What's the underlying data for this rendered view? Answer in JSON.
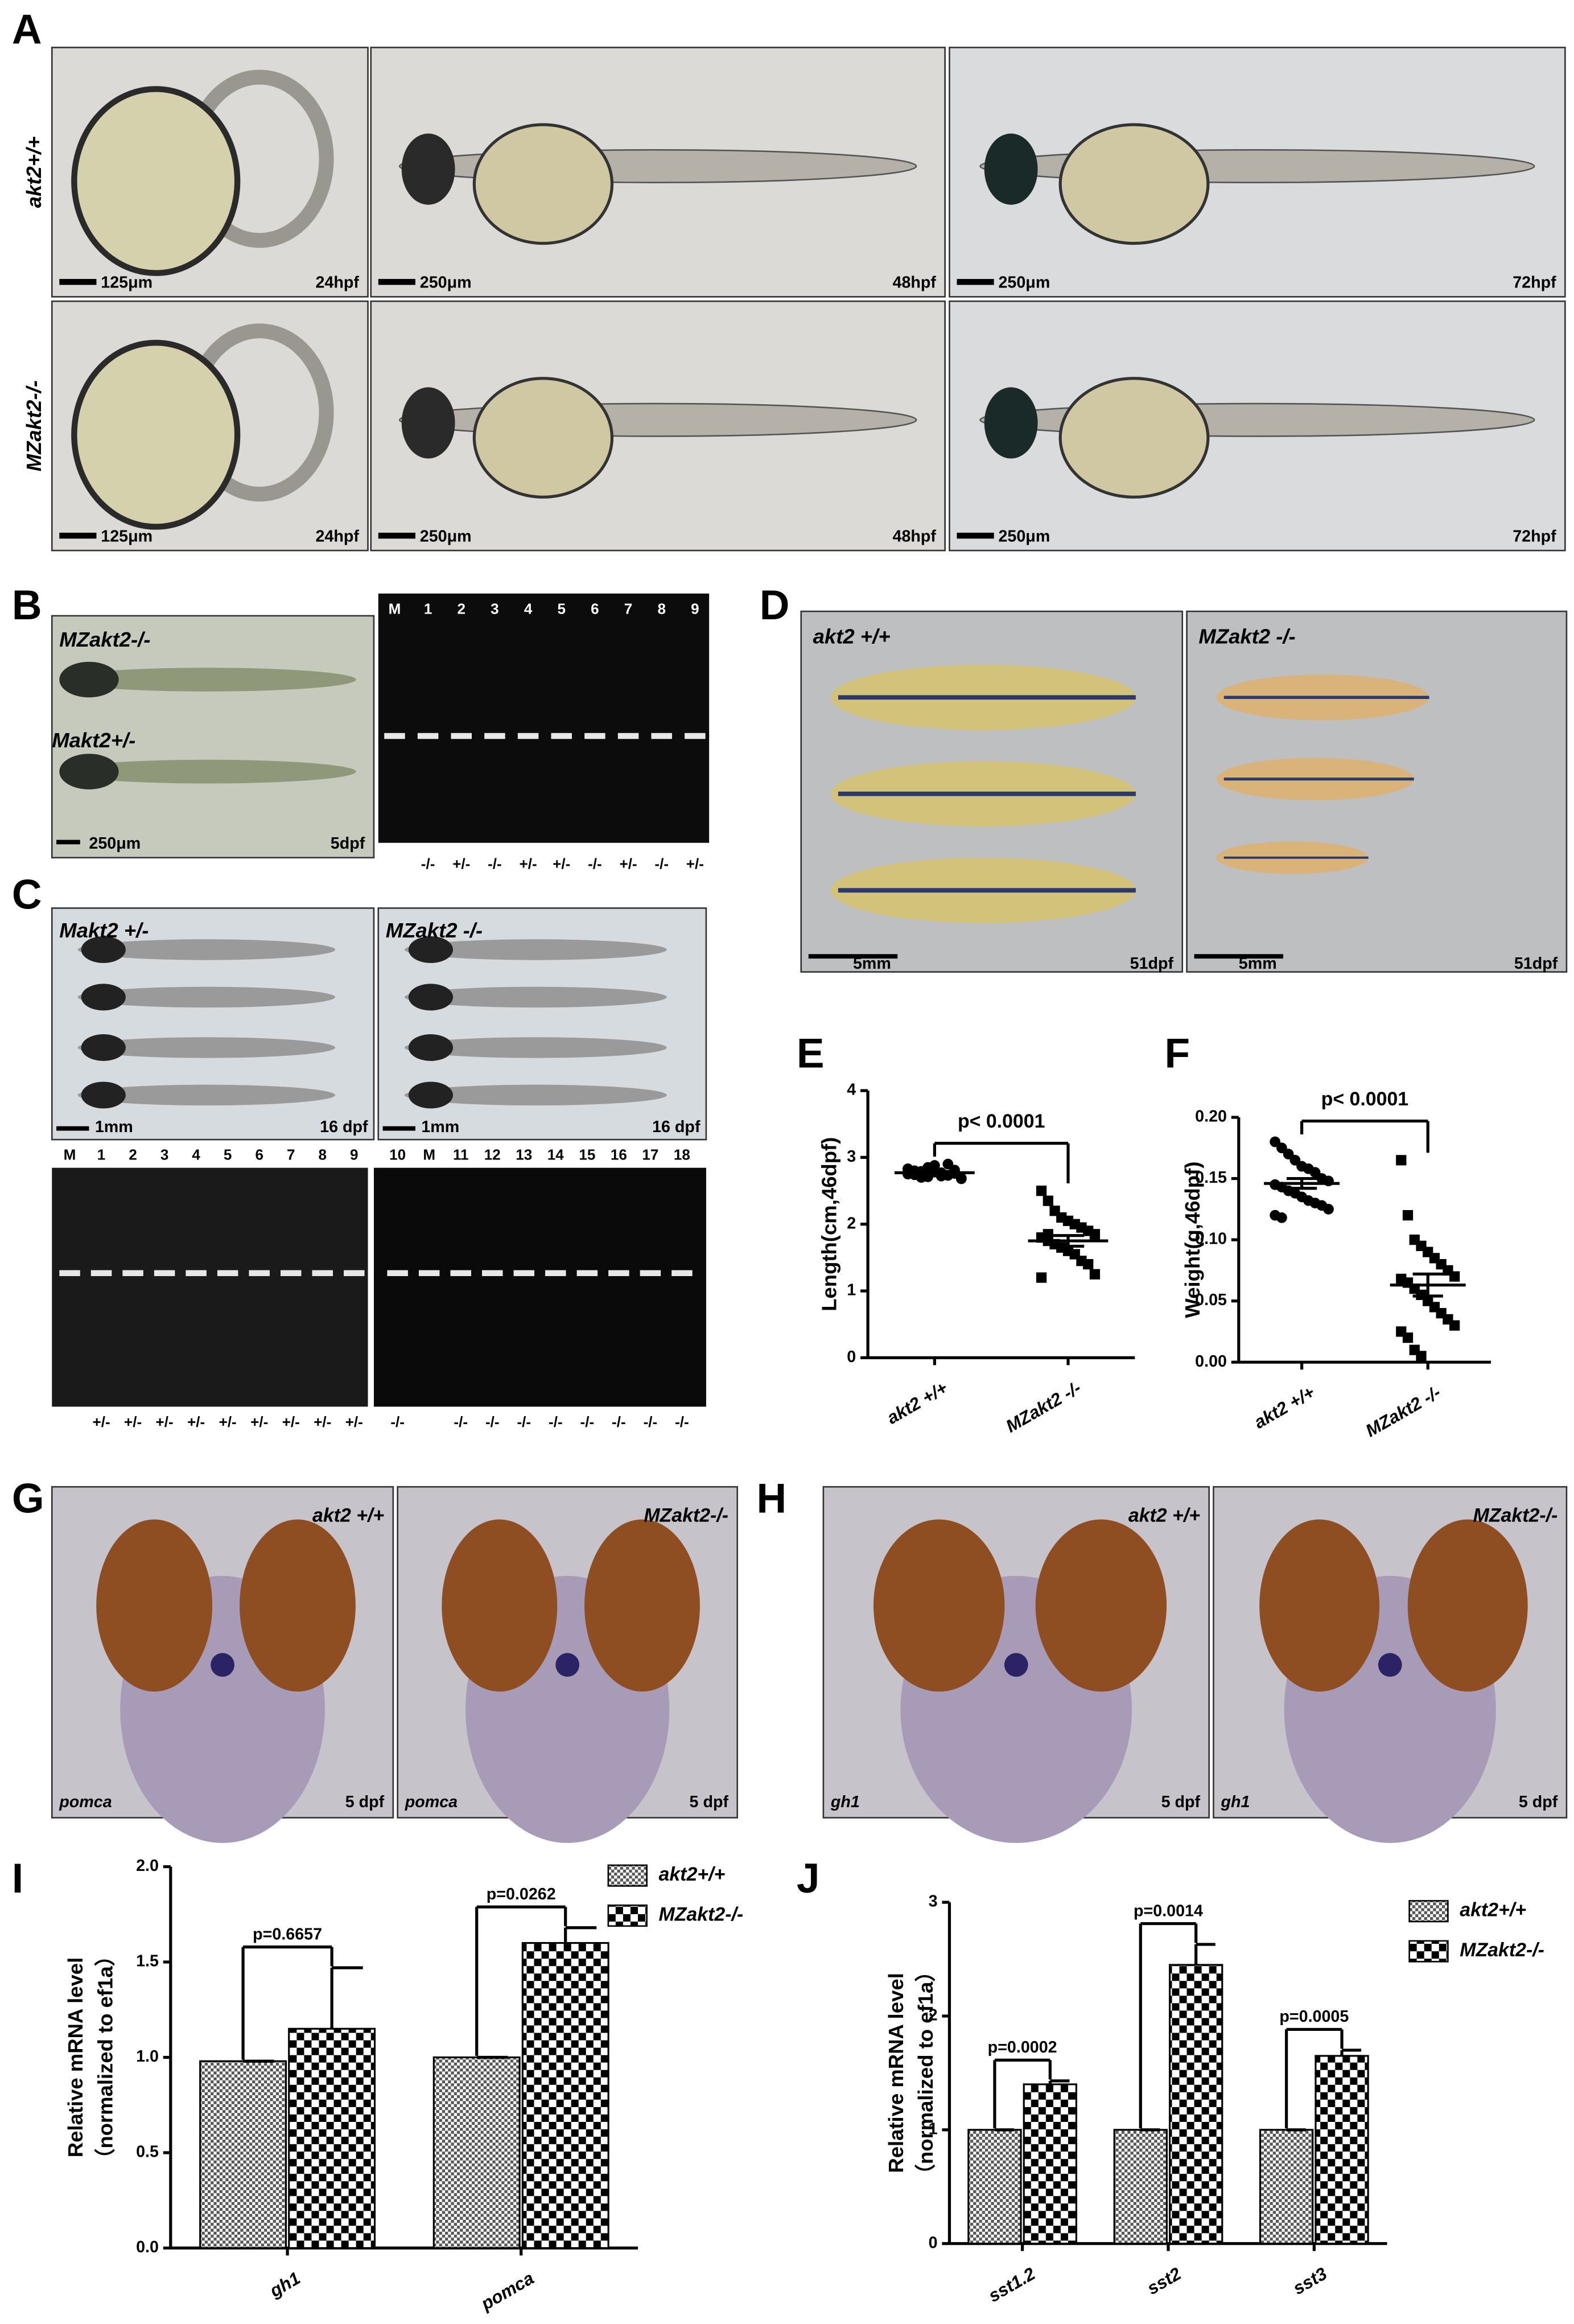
{
  "figure": {
    "panel_letters": [
      "A",
      "B",
      "C",
      "D",
      "E",
      "F",
      "G",
      "H",
      "I",
      "J"
    ],
    "A": {
      "rows": [
        "akt2+/+",
        "MZakt2-/-"
      ],
      "scale_bars": [
        "125μm",
        "250μm",
        "250μm",
        "125μm",
        "250μm",
        "250μm"
      ],
      "stages": [
        "24hpf",
        "48hpf",
        "72hpf",
        "24hpf",
        "48hpf",
        "72hpf"
      ]
    },
    "B": {
      "fish": [
        "MZakt2-/-",
        "Makt2+/-"
      ],
      "scale_bar": "250μm",
      "stage": "5dpf",
      "lanes": [
        "M",
        "1",
        "2",
        "3",
        "4",
        "5",
        "6",
        "7",
        "8",
        "9"
      ],
      "genotypes": [
        "-/-",
        "+/-",
        "-/-",
        "+/-",
        "+/-",
        "-/-",
        "+/-",
        "-/-",
        "+/-"
      ]
    },
    "C": {
      "fish": [
        "Makt2 +/-",
        "MZakt2 -/-"
      ],
      "scale_bars": [
        "1mm",
        "1mm"
      ],
      "stages": [
        "16 dpf",
        "16 dpf"
      ],
      "lanes_left": [
        "M",
        "1",
        "2",
        "3",
        "4",
        "5",
        "6",
        "7",
        "8",
        "9"
      ],
      "genotypes_left": [
        "+/-",
        "+/-",
        "+/-",
        "+/-",
        "+/-",
        "+/-",
        "+/-",
        "+/-",
        "+/-"
      ],
      "lanes_right": [
        "10",
        "M",
        "11",
        "12",
        "13",
        "14",
        "15",
        "16",
        "17",
        "18"
      ],
      "genotypes_right": [
        "-/-",
        "-/-",
        "-/-",
        "-/-",
        "-/-",
        "-/-",
        "-/-",
        "-/-",
        "-/-"
      ]
    },
    "D": {
      "fish": [
        "akt2 +/+",
        "MZakt2 -/-"
      ],
      "scale_bars": [
        "5mm",
        "5mm"
      ],
      "stages": [
        "51dpf",
        "51dpf"
      ]
    },
    "G": {
      "fish": [
        "akt2 +/+",
        "MZakt2-/-"
      ],
      "probes": [
        "pomca",
        "pomca"
      ],
      "stages": [
        "5 dpf",
        "5 dpf"
      ]
    },
    "H": {
      "fish": [
        "akt2 +/+",
        "MZakt2-/-"
      ],
      "probes": [
        "gh1",
        "gh1"
      ],
      "stages": [
        "5 dpf",
        "5 dpf"
      ]
    }
  },
  "chart_data": [
    {
      "type": "strip",
      "ylabel": "Length(cm,46dpf)",
      "categories": [
        "akt2 +/+",
        "MZakt2 -/-"
      ],
      "groups": [
        {
          "marker": "circle",
          "color": "#000000",
          "mean": 2.77,
          "sem": 0.02,
          "values": [
            2.75,
            2.8,
            2.7,
            2.85,
            2.78,
            2.72,
            2.9,
            2.76,
            2.68,
            2.82,
            2.74,
            2.79,
            2.71,
            2.88,
            2.77,
            2.73,
            2.81,
            2.69,
            2.83,
            2.75
          ]
        },
        {
          "marker": "square",
          "color": "#000000",
          "mean": 1.75,
          "sem": 0.08,
          "values": [
            2.5,
            2.35,
            2.2,
            2.1,
            2.05,
            2.0,
            1.95,
            1.9,
            1.85,
            1.8,
            1.75,
            1.7,
            1.65,
            1.6,
            1.55,
            1.45,
            1.4,
            1.25,
            1.2,
            1.85
          ]
        }
      ],
      "annotation": "p< 0.0001",
      "ylim": [
        0,
        4
      ],
      "yticks": [
        0,
        1,
        2,
        3,
        4
      ]
    },
    {
      "type": "strip",
      "ylabel": "Weight(g,46dpf)",
      "categories": [
        "akt2 +/+",
        "MZakt2 -/-"
      ],
      "groups": [
        {
          "marker": "circle",
          "color": "#000000",
          "mean": 0.146,
          "sem": 0.004,
          "values": [
            0.18,
            0.175,
            0.17,
            0.165,
            0.16,
            0.158,
            0.155,
            0.15,
            0.148,
            0.145,
            0.143,
            0.14,
            0.138,
            0.135,
            0.132,
            0.13,
            0.128,
            0.125,
            0.12,
            0.118
          ]
        },
        {
          "marker": "square",
          "color": "#000000",
          "mean": 0.063,
          "sem": 0.009,
          "values": [
            0.165,
            0.12,
            0.1,
            0.095,
            0.09,
            0.085,
            0.08,
            0.075,
            0.07,
            0.068,
            0.065,
            0.06,
            0.055,
            0.05,
            0.045,
            0.04,
            0.035,
            0.03,
            0.025,
            0.02,
            0.01,
            0.005
          ]
        }
      ],
      "annotation": "p< 0.0001",
      "ylim": [
        0,
        0.2
      ],
      "yticks": [
        {
          "value": 0,
          "label": "0.00"
        },
        {
          "value": 0.05,
          "label": "0.05"
        },
        {
          "value": 0.1,
          "label": "0.10"
        },
        {
          "value": 0.15,
          "label": "0.15"
        },
        {
          "value": 0.2,
          "label": "0.20"
        }
      ]
    },
    {
      "type": "bar",
      "ylabel": [
        "Relative mRNA level",
        "（normalized to ef1a）"
      ],
      "categories": [
        "gh1",
        "pomca"
      ],
      "series": [
        {
          "name": "akt2+/+",
          "color": "#555555",
          "pattern": "fine",
          "values": [
            0.98,
            1.0
          ],
          "errors": [
            0,
            0
          ]
        },
        {
          "name": "MZakt2-/-",
          "color": "#000000",
          "pattern": "checker",
          "values": [
            1.15,
            1.6
          ],
          "errors": [
            0.32,
            0.08
          ]
        }
      ],
      "annotations": [
        "p=0.6657",
        "p=0.0262"
      ],
      "ylim": [
        0,
        2
      ],
      "yticks": [
        {
          "value": 0,
          "label": "0.0"
        },
        {
          "value": 0.5,
          "label": "0.5"
        },
        {
          "value": 1,
          "label": "1.0"
        },
        {
          "value": 1.5,
          "label": "1.5"
        },
        {
          "value": 2,
          "label": "2.0"
        }
      ],
      "legend": "top-right"
    },
    {
      "type": "bar",
      "ylabel": [
        "Relative mRNA level",
        "（normalized to ef1a）"
      ],
      "categories": [
        "sst1.2",
        "sst2",
        "sst3"
      ],
      "series": [
        {
          "name": "akt2+/+",
          "color": "#555555",
          "pattern": "fine",
          "values": [
            1,
            1,
            1
          ],
          "errors": [
            0,
            0,
            0
          ]
        },
        {
          "name": "MZakt2-/-",
          "color": "#000000",
          "pattern": "checker",
          "values": [
            1.4,
            2.45,
            1.65
          ],
          "errors": [
            0.03,
            0.18,
            0.05
          ]
        }
      ],
      "annotations": [
        "p=0.0002",
        "p=0.0014",
        "p=0.0005"
      ],
      "ylim": [
        0,
        3
      ],
      "yticks": [
        0,
        1,
        2,
        3
      ],
      "legend": "top-right"
    }
  ]
}
